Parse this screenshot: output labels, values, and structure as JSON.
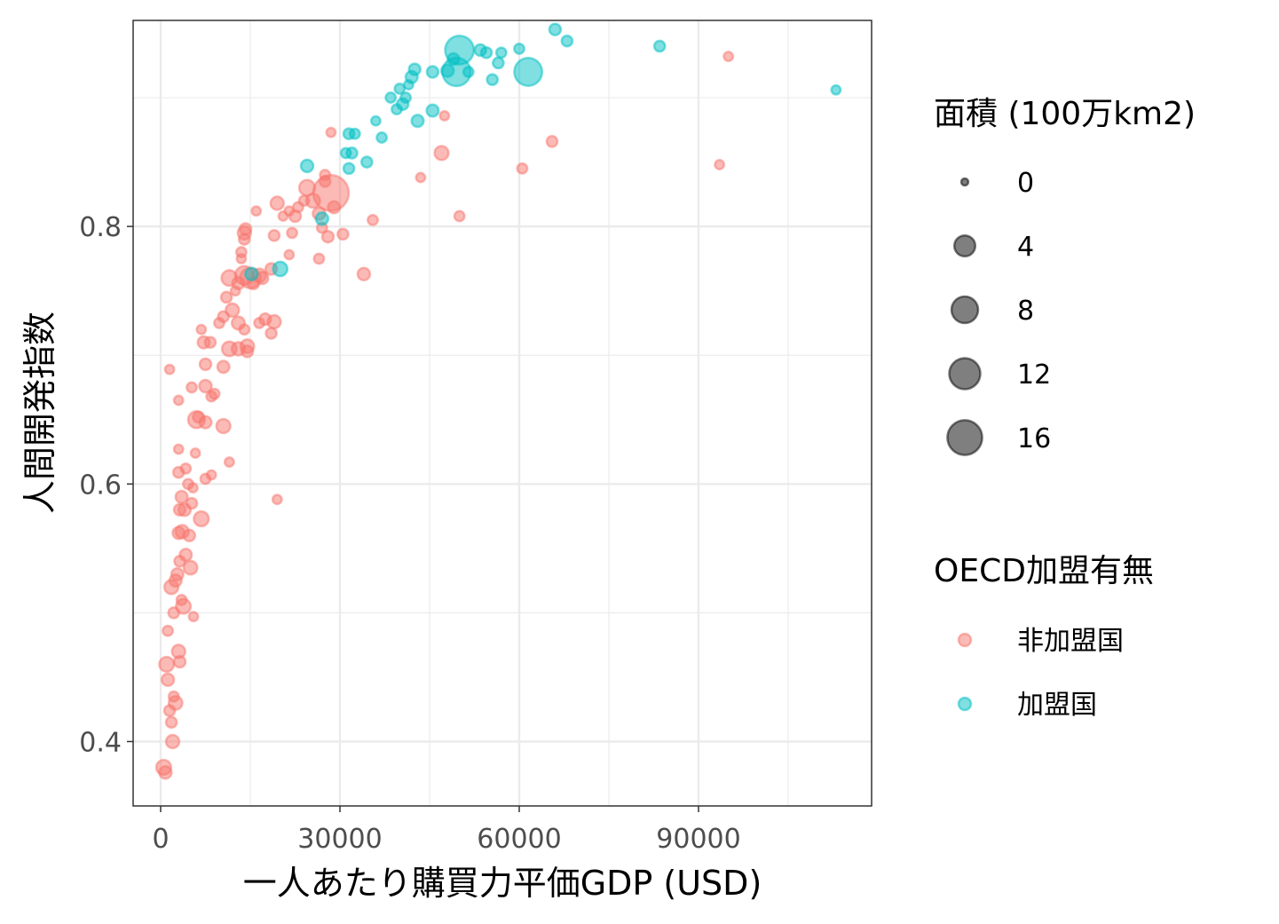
{
  "chart_data": {
    "type": "scatter",
    "xlabel": "一人あたり購買力平価GDP (USD)",
    "ylabel": "人間開発指数",
    "xlim": [
      -10000,
      264000
    ],
    "ylim": [
      0.35,
      0.96
    ],
    "x_ticks": [
      0,
      30000,
      60000,
      90000
    ],
    "y_ticks": [
      0.4,
      0.6,
      0.8
    ],
    "grid": true,
    "legend_size": {
      "title": "面積 (100万km2)",
      "values": [
        0,
        4,
        8,
        12,
        16
      ]
    },
    "legend_color": {
      "title": "OECD加盟有無",
      "entries": [
        {
          "label": "非加盟国",
          "color": "#F8766D"
        },
        {
          "label": "加盟国",
          "color": "#00BFC4"
        }
      ]
    },
    "series": [
      {
        "name": "非加盟国",
        "color": "#F8766D",
        "points": [
          [
            500,
            0.38,
            1.3
          ],
          [
            800,
            0.376,
            0.6
          ],
          [
            1000,
            0.46,
            1.2
          ],
          [
            1200,
            0.448,
            0.6
          ],
          [
            1500,
            0.424,
            0.3
          ],
          [
            1200,
            0.486,
            0.2
          ],
          [
            1800,
            0.415,
            0.3
          ],
          [
            2000,
            0.4,
            0.8
          ],
          [
            2200,
            0.435,
            0.2
          ],
          [
            2500,
            0.43,
            0.9
          ],
          [
            1800,
            0.52,
            1.0
          ],
          [
            2200,
            0.5,
            0.3
          ],
          [
            2800,
            0.53,
            0.5
          ],
          [
            3000,
            0.47,
            0.8
          ],
          [
            3200,
            0.462,
            0.4
          ],
          [
            3500,
            0.51,
            0.2
          ],
          [
            3800,
            0.505,
            1.2
          ],
          [
            2500,
            0.525,
            0.5
          ],
          [
            3200,
            0.54,
            0.3
          ],
          [
            4200,
            0.545,
            0.5
          ],
          [
            5000,
            0.535,
            0.9
          ],
          [
            5500,
            0.497,
            0.1
          ],
          [
            3000,
            0.562,
            0.5
          ],
          [
            3600,
            0.563,
            0.8
          ],
          [
            4800,
            0.56,
            0.4
          ],
          [
            6800,
            0.573,
            1.3
          ],
          [
            3200,
            0.58,
            0.4
          ],
          [
            4000,
            0.58,
            0.6
          ],
          [
            5200,
            0.585,
            0.3
          ],
          [
            3500,
            0.59,
            0.5
          ],
          [
            4600,
            0.6,
            0.2
          ],
          [
            5400,
            0.597,
            0.1
          ],
          [
            3000,
            0.609,
            0.3
          ],
          [
            4200,
            0.612,
            0.2
          ],
          [
            7500,
            0.604,
            0.2
          ],
          [
            8500,
            0.607,
            0.1
          ],
          [
            11500,
            0.617,
            0.1
          ],
          [
            19500,
            0.588,
            0.1
          ],
          [
            3000,
            0.627,
            0.1
          ],
          [
            5800,
            0.624,
            0.1
          ],
          [
            6000,
            0.65,
            2.0
          ],
          [
            7500,
            0.648,
            0.5
          ],
          [
            6300,
            0.652,
            0.3
          ],
          [
            10500,
            0.645,
            1.0
          ],
          [
            5200,
            0.675,
            0.2
          ],
          [
            7500,
            0.676,
            0.6
          ],
          [
            8500,
            0.668,
            0.2
          ],
          [
            9000,
            0.67,
            0.2
          ],
          [
            3000,
            0.665,
            0.1
          ],
          [
            1500,
            0.689,
            0.1
          ],
          [
            7500,
            0.693,
            0.4
          ],
          [
            10500,
            0.691,
            0.5
          ],
          [
            7200,
            0.71,
            0.5
          ],
          [
            8300,
            0.71,
            0.3
          ],
          [
            6800,
            0.72,
            0.1
          ],
          [
            11500,
            0.705,
            1.2
          ],
          [
            13000,
            0.705,
            0.8
          ],
          [
            14500,
            0.707,
            0.9
          ],
          [
            14500,
            0.703,
            0.4
          ],
          [
            9800,
            0.725,
            0.2
          ],
          [
            10500,
            0.73,
            0.3
          ],
          [
            12000,
            0.735,
            0.8
          ],
          [
            13000,
            0.725,
            0.7
          ],
          [
            14000,
            0.72,
            0.2
          ],
          [
            16500,
            0.725,
            0.2
          ],
          [
            17500,
            0.728,
            0.4
          ],
          [
            19000,
            0.726,
            0.8
          ],
          [
            18500,
            0.717,
            0.3
          ],
          [
            11000,
            0.745,
            0.3
          ],
          [
            12500,
            0.75,
            0.1
          ],
          [
            11500,
            0.76,
            1.5
          ],
          [
            13000,
            0.756,
            0.5
          ],
          [
            14000,
            0.762,
            2.8
          ],
          [
            15500,
            0.756,
            0.5
          ],
          [
            16500,
            0.762,
            0.9
          ],
          [
            15000,
            0.76,
            3.8
          ],
          [
            17000,
            0.76,
            0.5
          ],
          [
            13500,
            0.775,
            0.1
          ],
          [
            13500,
            0.78,
            0.2
          ],
          [
            14000,
            0.795,
            0.8
          ],
          [
            14200,
            0.798,
            0.4
          ],
          [
            14000,
            0.79,
            0.3
          ],
          [
            18500,
            0.767,
            0.4
          ],
          [
            21500,
            0.778,
            0.1
          ],
          [
            19000,
            0.793,
            0.3
          ],
          [
            22000,
            0.795,
            0.2
          ],
          [
            26500,
            0.775,
            0.2
          ],
          [
            28000,
            0.792,
            0.4
          ],
          [
            30500,
            0.794,
            0.3
          ],
          [
            35500,
            0.805,
            0.2
          ],
          [
            34000,
            0.763,
            0.6
          ],
          [
            27000,
            0.799,
            0.2
          ],
          [
            26500,
            0.81,
            0.6
          ],
          [
            29000,
            0.815,
            0.5
          ],
          [
            21500,
            0.812,
            0.1
          ],
          [
            23000,
            0.815,
            0.2
          ],
          [
            24000,
            0.82,
            0.2
          ],
          [
            25500,
            0.82,
            1.0
          ],
          [
            20500,
            0.808,
            0.1
          ],
          [
            19500,
            0.818,
            0.8
          ],
          [
            22500,
            0.808,
            0.4
          ],
          [
            16000,
            0.812,
            0.1
          ],
          [
            24500,
            0.83,
            1.6
          ],
          [
            27500,
            0.835,
            0.3
          ],
          [
            28500,
            0.826,
            17.1
          ],
          [
            27500,
            0.84,
            0.2
          ],
          [
            50000,
            0.808,
            0.2
          ],
          [
            43500,
            0.838,
            0.1
          ],
          [
            47000,
            0.857,
            1.0
          ],
          [
            60500,
            0.845,
            0.2
          ],
          [
            65500,
            0.866,
            0.3
          ],
          [
            93500,
            0.848,
            0.1
          ],
          [
            47500,
            0.886,
            0.1
          ],
          [
            95000,
            0.932,
            0.1
          ],
          [
            28500,
            0.873,
            0.1
          ]
        ]
      },
      {
        "name": "加盟国",
        "color": "#00BFC4",
        "points": [
          [
            15200,
            0.763,
            0.6
          ],
          [
            20000,
            0.767,
            1.1
          ],
          [
            27000,
            0.806,
            0.6
          ],
          [
            24500,
            0.847,
            0.6
          ],
          [
            31500,
            0.845,
            0.3
          ],
          [
            32000,
            0.857,
            0.3
          ],
          [
            34500,
            0.85,
            0.3
          ],
          [
            31000,
            0.857,
            0.2
          ],
          [
            31500,
            0.872,
            0.3
          ],
          [
            32500,
            0.872,
            0.2
          ],
          [
            36000,
            0.882,
            0.1
          ],
          [
            37000,
            0.869,
            0.2
          ],
          [
            38500,
            0.9,
            0.2
          ],
          [
            39500,
            0.891,
            0.2
          ],
          [
            40000,
            0.907,
            0.2
          ],
          [
            41000,
            0.9,
            0.2
          ],
          [
            41500,
            0.91,
            0.1
          ],
          [
            40500,
            0.895,
            0.4
          ],
          [
            43000,
            0.882,
            0.5
          ],
          [
            45500,
            0.89,
            0.5
          ],
          [
            42000,
            0.916,
            0.5
          ],
          [
            42500,
            0.922,
            0.4
          ],
          [
            45500,
            0.92,
            0.4
          ],
          [
            48000,
            0.921,
            0.6
          ],
          [
            49000,
            0.93,
            0.4
          ],
          [
            50000,
            0.937,
            9.8
          ],
          [
            49500,
            0.92,
            9.5
          ],
          [
            51500,
            0.92,
            0.2
          ],
          [
            53500,
            0.937,
            0.4
          ],
          [
            54500,
            0.935,
            0.3
          ],
          [
            55500,
            0.914,
            0.3
          ],
          [
            56500,
            0.927,
            0.3
          ],
          [
            57000,
            0.935,
            0.2
          ],
          [
            60000,
            0.938,
            0.2
          ],
          [
            61500,
            0.92,
            9.0
          ],
          [
            66000,
            0.953,
            0.4
          ],
          [
            68000,
            0.944,
            0.3
          ],
          [
            83500,
            0.94,
            0.3
          ],
          [
            113000,
            0.906,
            0.1
          ]
        ]
      }
    ]
  }
}
